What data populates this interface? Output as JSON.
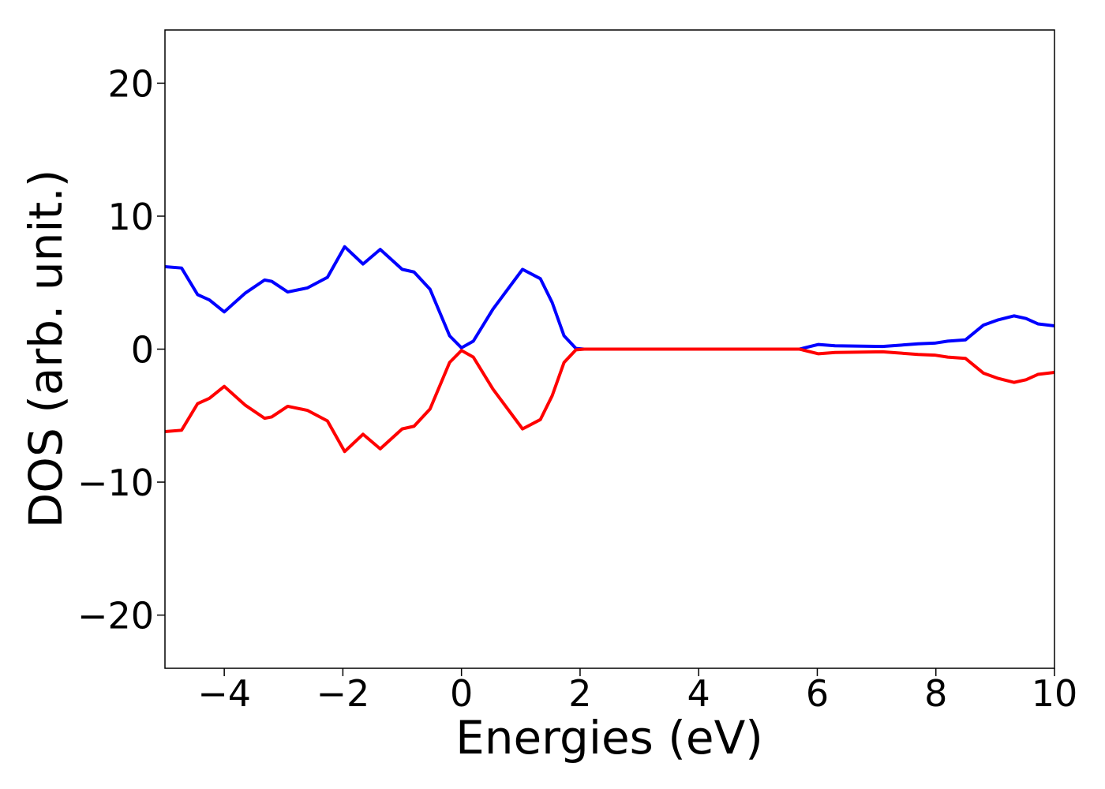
{
  "chart_data": {
    "type": "line",
    "xlabel": "Energies (eV)",
    "ylabel": "DOS (arb. unit.)",
    "x": [
      -5,
      -4.72,
      -4.45,
      -4.25,
      -4,
      -3.65,
      -3.32,
      -3.2,
      -2.93,
      -2.6,
      -2.26,
      -1.97,
      -1.66,
      -1.37,
      -1.0,
      -0.8,
      -0.53,
      -0.2,
      0,
      0.2,
      0.53,
      1.03,
      1.33,
      1.53,
      1.73,
      1.93,
      2.07,
      3,
      4,
      5,
      5.7,
      6.02,
      6.3,
      7.1,
      7.7,
      7.98,
      8.2,
      8.5,
      8.8,
      9.05,
      9.32,
      9.52,
      9.72,
      10
    ],
    "series": [
      {
        "color": "#0000ff",
        "values": [
          6.2,
          6.1,
          4.1,
          3.7,
          2.8,
          4.2,
          5.2,
          5.1,
          4.3,
          4.6,
          5.4,
          7.7,
          6.4,
          7.5,
          6.0,
          5.8,
          4.5,
          1.0,
          0.1,
          0.6,
          3.0,
          6.0,
          5.3,
          3.5,
          1.0,
          0.05,
          0,
          0,
          0,
          0,
          0,
          0.35,
          0.25,
          0.2,
          0.4,
          0.45,
          0.6,
          0.7,
          1.8,
          2.2,
          2.5,
          2.3,
          1.9,
          1.75
        ]
      },
      {
        "color": "#ff0000",
        "values": [
          -6.2,
          -6.1,
          -4.1,
          -3.7,
          -2.8,
          -4.2,
          -5.2,
          -5.1,
          -4.3,
          -4.6,
          -5.4,
          -7.7,
          -6.4,
          -7.5,
          -6.0,
          -5.8,
          -4.5,
          -1.0,
          -0.1,
          -0.6,
          -3.0,
          -6.0,
          -5.3,
          -3.5,
          -1.0,
          -0.05,
          0,
          0,
          0,
          0,
          0,
          -0.35,
          -0.25,
          -0.2,
          -0.4,
          -0.45,
          -0.6,
          -0.7,
          -1.8,
          -2.2,
          -2.5,
          -2.3,
          -1.9,
          -1.75
        ]
      }
    ],
    "xlim": [
      -5,
      10
    ],
    "xticks": [
      {
        "value": -4,
        "label": "−4"
      },
      {
        "value": -2,
        "label": "−2"
      },
      0,
      2,
      4,
      6,
      8,
      10
    ],
    "ylim": [
      -24,
      24
    ],
    "yticks": [
      {
        "value": -20,
        "label": "−20"
      },
      {
        "value": -10,
        "label": "−10"
      },
      0,
      10,
      20
    ]
  }
}
